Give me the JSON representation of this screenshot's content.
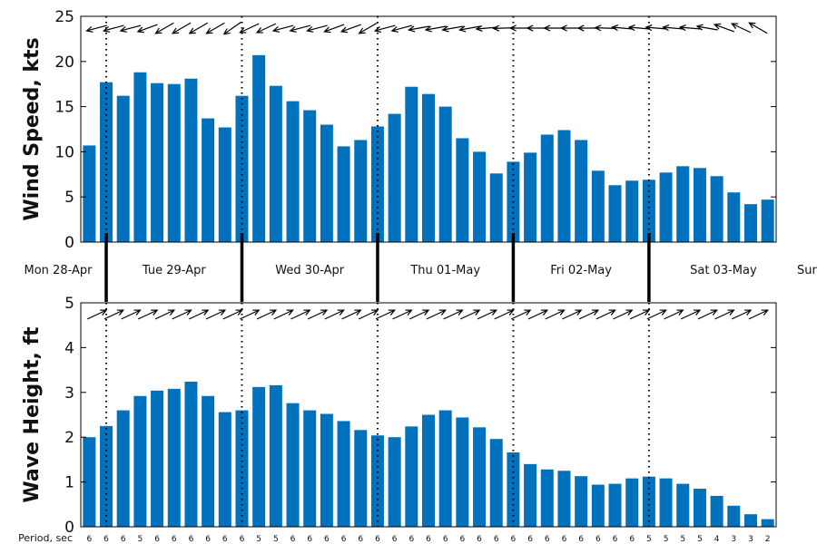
{
  "chart_data": [
    {
      "type": "bar",
      "panel": "wind",
      "ylabel": "Wind Speed, kts",
      "ylim": [
        0,
        25
      ],
      "yticks": [
        0,
        5,
        10,
        15,
        20,
        25
      ],
      "bar_color": "#0072BD",
      "values": [
        10.7,
        17.7,
        16.2,
        18.8,
        17.6,
        17.5,
        18.1,
        13.7,
        12.7,
        16.2,
        20.7,
        17.3,
        15.6,
        14.6,
        13.0,
        10.6,
        11.3,
        12.8,
        14.2,
        17.2,
        16.4,
        15.0,
        11.5,
        10.0,
        7.6,
        8.9,
        9.9,
        11.9,
        12.4,
        11.3,
        7.9,
        6.3,
        6.8,
        6.9,
        7.7,
        8.4,
        8.2,
        7.3,
        5.5,
        4.2,
        4.7
      ],
      "arrow_to_deg": [
        215,
        195,
        195,
        195,
        200,
        210,
        210,
        210,
        210,
        215,
        205,
        205,
        195,
        195,
        195,
        200,
        200,
        210,
        195,
        195,
        190,
        190,
        190,
        190,
        185,
        182,
        180,
        180,
        180,
        180,
        180,
        178,
        175,
        175,
        175,
        175,
        175,
        170,
        160,
        155,
        150
      ]
    },
    {
      "type": "bar",
      "panel": "waves",
      "ylabel": "Wave Height, ft",
      "ylim": [
        0,
        5
      ],
      "yticks": [
        0,
        1,
        2,
        3,
        4,
        5
      ],
      "bar_color": "#0072BD",
      "values": [
        2.0,
        2.25,
        2.6,
        2.92,
        3.04,
        3.08,
        3.24,
        2.92,
        2.56,
        2.6,
        3.12,
        3.16,
        2.76,
        2.6,
        2.52,
        2.36,
        2.16,
        2.04,
        2.0,
        2.24,
        2.5,
        2.6,
        2.44,
        2.22,
        1.96,
        1.66,
        1.4,
        1.28,
        1.25,
        1.13,
        0.94,
        0.96,
        1.08,
        1.12,
        1.08,
        0.96,
        0.85,
        0.69,
        0.47,
        0.28,
        0.17
      ],
      "arrow_to_deg": [
        25,
        25,
        25,
        25,
        25,
        25,
        25,
        25,
        25,
        25,
        25,
        25,
        25,
        25,
        25,
        25,
        25,
        25,
        25,
        25,
        25,
        25,
        25,
        25,
        25,
        25,
        25,
        25,
        25,
        25,
        25,
        25,
        25,
        25,
        25,
        25,
        25,
        25,
        25,
        25,
        25
      ],
      "period_label": "Period, sec",
      "periods": [
        "6",
        "6",
        "6",
        "5",
        "6",
        "6",
        "6",
        "6",
        "6",
        "6",
        "5",
        "5",
        "6",
        "6",
        "6",
        "6",
        "6",
        "6",
        "6",
        "6",
        "6",
        "6",
        "6",
        "6",
        "6",
        "6",
        "6",
        "6",
        "6",
        "6",
        "6",
        "6",
        "6",
        "5",
        "5",
        "5",
        "5",
        "4",
        "3",
        "3",
        "2"
      ]
    }
  ],
  "days": [
    "Mon 28-Apr",
    "Tue 29-Apr",
    "Wed 30-Apr",
    "Thu 01-May",
    "Fri 02-May",
    "Sat 03-May",
    "Sun"
  ],
  "day_boundaries": [
    1,
    9,
    17,
    25,
    33
  ]
}
